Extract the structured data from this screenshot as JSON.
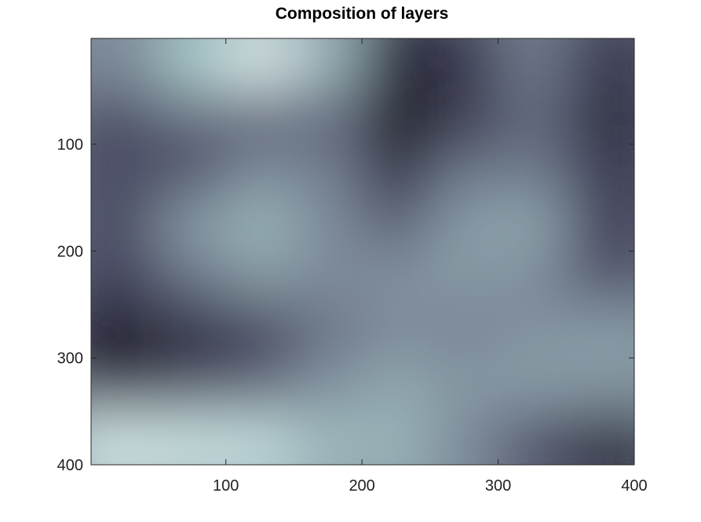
{
  "chart_data": {
    "type": "heatmap",
    "title": "Composition of layers",
    "xlabel": "",
    "ylabel": "",
    "xlim": [
      1,
      400
    ],
    "ylim": [
      1,
      400
    ],
    "y_reversed": true,
    "x_ticks": [
      100,
      200,
      300,
      400
    ],
    "y_ticks": [
      100,
      200,
      300,
      400
    ],
    "x_tick_labels": [
      "100",
      "200",
      "300",
      "400"
    ],
    "y_tick_labels": [
      "100",
      "200",
      "300",
      "400"
    ],
    "colormap": "bone",
    "colors": {
      "darkest": "#0a0a12",
      "dark": "#3f3f5a",
      "mid": "#7a8898",
      "light": "#a8cccc",
      "lightest": "#f4f8f8"
    },
    "grid_rows": 8,
    "grid_cols": 8,
    "values": [
      [
        0.55,
        0.78,
        0.92,
        0.7,
        0.12,
        0.2,
        0.48,
        0.22
      ],
      [
        0.3,
        0.42,
        0.38,
        0.4,
        0.02,
        0.18,
        0.4,
        0.15
      ],
      [
        0.28,
        0.3,
        0.55,
        0.5,
        0.16,
        0.46,
        0.48,
        0.22
      ],
      [
        0.3,
        0.62,
        0.72,
        0.55,
        0.38,
        0.62,
        0.66,
        0.25
      ],
      [
        0.26,
        0.45,
        0.6,
        0.55,
        0.58,
        0.6,
        0.55,
        0.32
      ],
      [
        0.05,
        0.12,
        0.22,
        0.45,
        0.55,
        0.52,
        0.58,
        0.62
      ],
      [
        0.2,
        0.3,
        0.4,
        0.58,
        0.66,
        0.6,
        0.62,
        0.6
      ],
      [
        0.9,
        0.88,
        0.86,
        0.72,
        0.7,
        0.55,
        0.32,
        0.15
      ]
    ]
  }
}
